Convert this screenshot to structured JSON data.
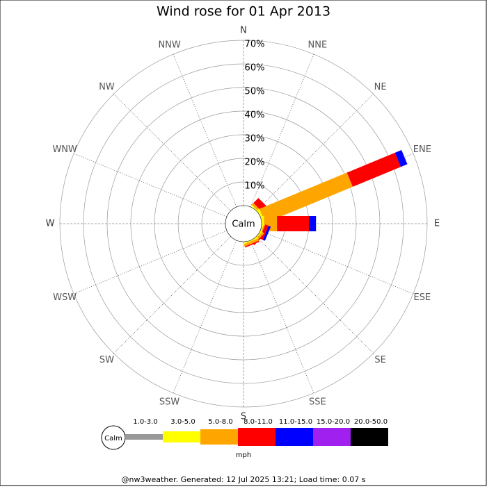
{
  "chart_data": {
    "type": "windrose",
    "title": "Wind rose for 01 Apr 2013",
    "directions": [
      "N",
      "NNE",
      "NE",
      "ENE",
      "E",
      "ESE",
      "SE",
      "SSE",
      "S",
      "SSW",
      "SW",
      "WSW",
      "W",
      "WNW",
      "NW",
      "NNW"
    ],
    "series": [
      {
        "name": "1.0-3.0",
        "color": "#999999",
        "values": [
          0,
          0,
          0,
          0,
          0,
          0,
          0,
          0,
          0,
          0,
          0,
          0,
          0,
          0,
          0,
          0
        ]
      },
      {
        "name": "3.0-5.0",
        "color": "#ffff00",
        "values": [
          0,
          0,
          0.5,
          1,
          1,
          0.5,
          0.5,
          0.5,
          0,
          0,
          0,
          0,
          0,
          0,
          0,
          0
        ]
      },
      {
        "name": "5.0-8.0",
        "color": "#ffa500",
        "values": [
          0,
          0,
          1,
          40,
          5.5,
          0.5,
          1,
          1,
          0,
          0,
          0,
          0,
          0,
          0,
          0,
          0
        ]
      },
      {
        "name": "8.0-11.0",
        "color": "#ff0000",
        "values": [
          0,
          0,
          3,
          22,
          13.5,
          1.5,
          0.5,
          0.5,
          0,
          0,
          0,
          0,
          0,
          0,
          0,
          0
        ]
      },
      {
        "name": "11.0-15.0",
        "color": "#0000ff",
        "values": [
          0,
          0,
          0,
          3,
          3,
          1,
          0,
          0,
          0,
          0,
          0,
          0,
          0,
          0,
          0,
          0
        ]
      },
      {
        "name": "15.0-20.0",
        "color": "#a020f0",
        "values": [
          0,
          0,
          0,
          0,
          0,
          0,
          0,
          0,
          0,
          0,
          0,
          0,
          0,
          0,
          0,
          0
        ]
      },
      {
        "name": "20.0-50.0",
        "color": "#000000",
        "values": [
          0,
          0,
          0,
          0,
          0,
          0,
          0,
          0,
          0,
          0,
          0,
          0,
          0,
          0,
          0,
          0
        ]
      }
    ],
    "rlim": [
      0,
      70
    ],
    "rticks": [
      {
        "value": 10,
        "label": "10%"
      },
      {
        "value": 20,
        "label": "20%"
      },
      {
        "value": 30,
        "label": "30%"
      },
      {
        "value": 40,
        "label": "40%"
      },
      {
        "value": 50,
        "label": "50%"
      },
      {
        "value": 60,
        "label": "60%"
      },
      {
        "value": 70,
        "label": "70%"
      }
    ],
    "calm_label": "Calm",
    "unit_label": "mph",
    "footer": "@nw3weather. Generated: 12 Jul 2025 13:21; Load time: 0.07 s"
  }
}
